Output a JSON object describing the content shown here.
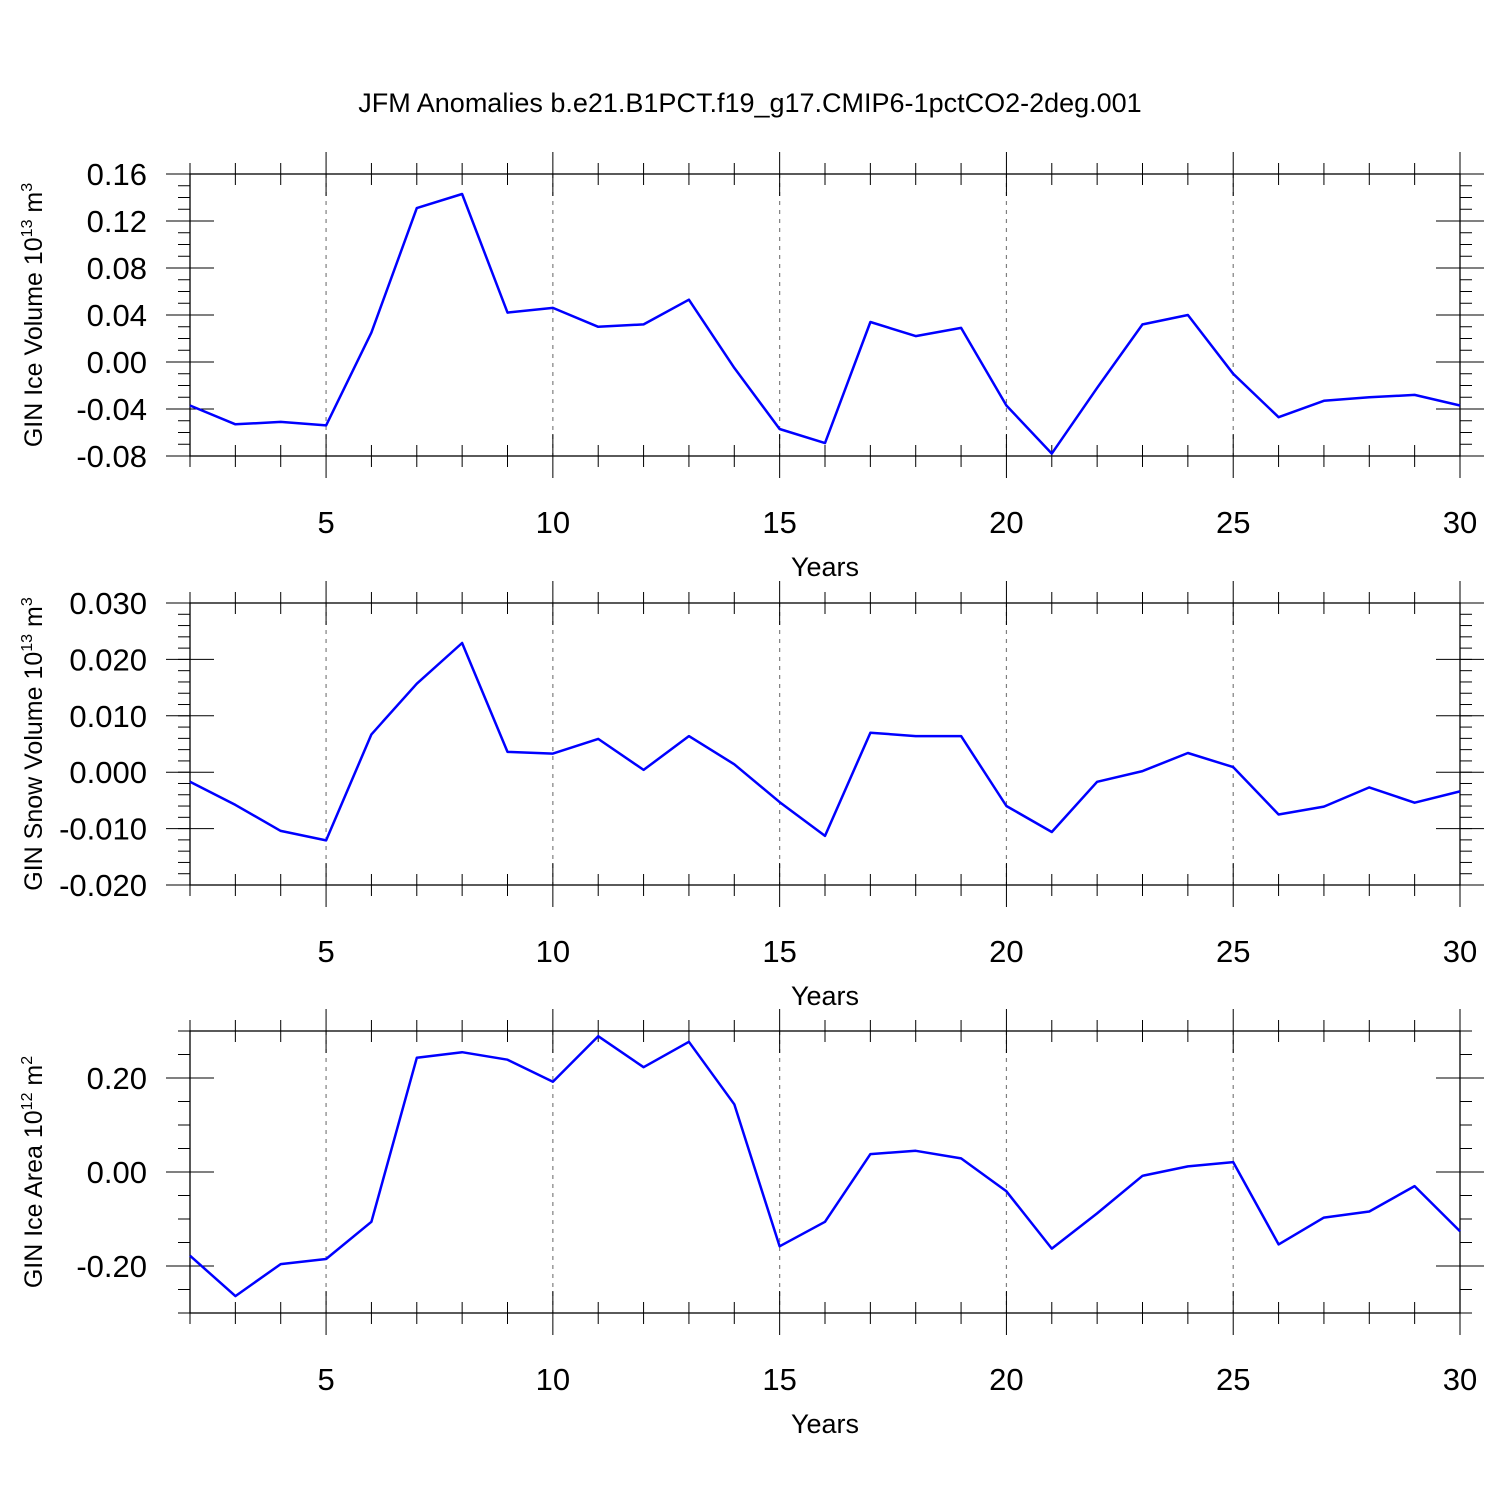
{
  "title": "JFM Anomalies b.e21.B1PCT.f19_g17.CMIP6-1pctCO2-2deg.001",
  "colors": {
    "line": "#0000ff",
    "axis": "#000000",
    "grid": "#7f7f7f"
  },
  "chart_data": [
    {
      "type": "line",
      "ylabel": "GIN Ice Volume 10",
      "ylabel_exp": "13",
      "ylabel_unit": " m",
      "ylabel_unit_exp": "3",
      "xlabel": "Years",
      "xlim": [
        2,
        30
      ],
      "ylim": [
        -0.08,
        0.16
      ],
      "yticks": [
        -0.08,
        -0.04,
        0.0,
        0.04,
        0.08,
        0.12,
        0.16
      ],
      "ytick_labels": [
        "-0.08",
        "-0.04",
        "0.00",
        "0.04",
        "0.08",
        "0.12",
        "0.16"
      ],
      "yminor_step": 0.01,
      "xticks": [
        5,
        10,
        15,
        20,
        25,
        30
      ],
      "xtick_labels": [
        "5",
        "10",
        "15",
        "20",
        "25",
        "30"
      ],
      "x": [
        2,
        3,
        4,
        5,
        6,
        7,
        8,
        9,
        10,
        11,
        12,
        13,
        14,
        15,
        16,
        17,
        18,
        19,
        20,
        21,
        22,
        23,
        24,
        25,
        26,
        27,
        28,
        29,
        30
      ],
      "series": [
        {
          "name": "GIN Ice Volume",
          "values": [
            -0.037,
            -0.053,
            -0.051,
            -0.054,
            0.025,
            0.131,
            0.143,
            0.042,
            0.046,
            0.03,
            0.032,
            0.053,
            -0.005,
            -0.057,
            -0.069,
            0.034,
            0.022,
            0.029,
            -0.037,
            -0.078,
            -0.022,
            0.032,
            0.04,
            -0.01,
            -0.047,
            -0.033,
            -0.03,
            -0.028,
            -0.037
          ]
        }
      ]
    },
    {
      "type": "line",
      "ylabel": "GIN Snow Volume 10",
      "ylabel_exp": "13",
      "ylabel_unit": " m",
      "ylabel_unit_exp": "3",
      "xlabel": "Years",
      "xlim": [
        2,
        30
      ],
      "ylim": [
        -0.02,
        0.03
      ],
      "yticks": [
        -0.02,
        -0.01,
        0.0,
        0.01,
        0.02,
        0.03
      ],
      "ytick_labels": [
        "-0.020",
        "-0.010",
        "0.000",
        "0.010",
        "0.020",
        "0.030"
      ],
      "yminor_step": 0.002,
      "xticks": [
        5,
        10,
        15,
        20,
        25,
        30
      ],
      "xtick_labels": [
        "5",
        "10",
        "15",
        "20",
        "25",
        "30"
      ],
      "x": [
        2,
        3,
        4,
        5,
        6,
        7,
        8,
        9,
        10,
        11,
        12,
        13,
        14,
        15,
        16,
        17,
        18,
        19,
        20,
        21,
        22,
        23,
        24,
        25,
        26,
        27,
        28,
        29,
        30
      ],
      "series": [
        {
          "name": "GIN Snow Volume",
          "values": [
            -0.0017,
            -0.0058,
            -0.0104,
            -0.0121,
            0.0067,
            0.0157,
            0.0229,
            0.0036,
            0.0033,
            0.0059,
            0.0004,
            0.0064,
            0.0014,
            -0.0053,
            -0.0113,
            0.007,
            0.0064,
            0.0064,
            -0.006,
            -0.0106,
            -0.0017,
            0.0002,
            0.0034,
            0.0009,
            -0.0075,
            -0.0061,
            -0.0027,
            -0.0054,
            -0.0034
          ]
        }
      ]
    },
    {
      "type": "line",
      "ylabel": "GIN Ice Area 10",
      "ylabel_exp": "12",
      "ylabel_unit": " m",
      "ylabel_unit_exp": "2",
      "xlabel": "Years",
      "xlim": [
        2,
        30
      ],
      "ylim": [
        -0.3,
        0.3
      ],
      "yticks": [
        -0.2,
        0.0,
        0.2
      ],
      "ytick_labels": [
        "-0.20",
        "0.00",
        "0.20"
      ],
      "yminor_step": 0.05,
      "xticks": [
        5,
        10,
        15,
        20,
        25,
        30
      ],
      "xtick_labels": [
        "5",
        "10",
        "15",
        "20",
        "25",
        "30"
      ],
      "x": [
        2,
        3,
        4,
        5,
        6,
        7,
        8,
        9,
        10,
        11,
        12,
        13,
        14,
        15,
        16,
        17,
        18,
        19,
        20,
        21,
        22,
        23,
        24,
        25,
        26,
        27,
        28,
        29,
        30
      ],
      "series": [
        {
          "name": "GIN Ice Area",
          "values": [
            -0.178,
            -0.264,
            -0.196,
            -0.185,
            -0.106,
            0.243,
            0.255,
            0.239,
            0.192,
            0.289,
            0.223,
            0.277,
            0.144,
            -0.158,
            -0.106,
            0.038,
            0.045,
            0.029,
            -0.041,
            -0.163,
            -0.088,
            -0.008,
            0.012,
            0.021,
            -0.154,
            -0.097,
            -0.084,
            -0.03,
            -0.126
          ]
        }
      ]
    }
  ]
}
